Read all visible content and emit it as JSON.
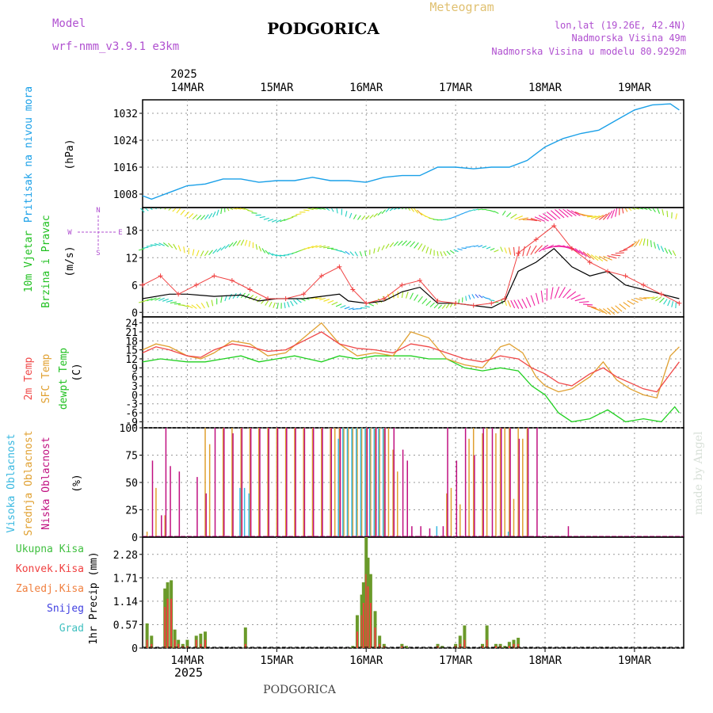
{
  "header": {
    "model_label": "Model",
    "model_value": "wrf-nmm_v3.9.1 e3km",
    "station": "PODGORICA",
    "product": "Meteogram",
    "coords": "lon,lat (19.26E, 42.4N)",
    "elevation": "Nadmorska Visina 49m",
    "model_elevation": "Nadmorska Visina u modelu 80.9292m",
    "year": "2025",
    "footer_station": "PODGORICA",
    "credit": "made by Angel"
  },
  "colors": {
    "pressure": "#1aa0e8",
    "wind_speed": "#000000",
    "wind_gust": "#f04040",
    "temp_2m": "#f04848",
    "temp_sfc": "#e0a030",
    "temp_dew": "#20d020",
    "cloud_high": "#38b8e0",
    "cloud_mid": "#e0a030",
    "cloud_low": "#c01080",
    "precip_total": "#40c040",
    "precip_conv": "#f04040",
    "precip_frz": "#f08040",
    "precip_snow": "#4040e0",
    "precip_grad": "#40c0c0",
    "accent_purple": "#b050d0",
    "accent_gold": "#e0c070"
  },
  "chart_data": [
    {
      "type": "line",
      "id": "pressure",
      "title": "Pritisak na nivou mora",
      "ylabel": "(hPa)",
      "ylim": [
        1004,
        1036
      ],
      "yticks": [
        1008,
        1016,
        1024,
        1032
      ],
      "x_days": [
        13.5,
        13.6,
        13.7,
        13.85,
        14.0,
        14.2,
        14.4,
        14.6,
        14.8,
        15.0,
        15.2,
        15.4,
        15.6,
        15.8,
        16.0,
        16.2,
        16.4,
        16.6,
        16.8,
        17.0,
        17.2,
        17.4,
        17.6,
        17.8,
        18.0,
        18.2,
        18.4,
        18.6,
        18.8,
        19.0,
        19.2,
        19.4,
        19.5
      ],
      "values": [
        1007.5,
        1006.5,
        1007.5,
        1009,
        1010.5,
        1011,
        1012.5,
        1012.5,
        1011.5,
        1012,
        1012,
        1013,
        1012,
        1012,
        1011.5,
        1013,
        1013.5,
        1013.5,
        1016,
        1016,
        1015.5,
        1016,
        1016,
        1018,
        1022,
        1024.5,
        1026,
        1027,
        1030,
        1033,
        1034.5,
        1034.8,
        1033
      ]
    },
    {
      "type": "line",
      "id": "wind",
      "title": "10m Vjetar",
      "subtitle": "Brzina i Pravac",
      "ylabel": "(m/s)",
      "ylim": [
        -1,
        23
      ],
      "yticks": [
        0,
        6,
        12,
        18
      ],
      "compass": [
        "N",
        "W",
        "E",
        "S"
      ],
      "series": [
        {
          "name": "speed",
          "x_days": [
            13.5,
            13.8,
            14.0,
            14.3,
            14.6,
            14.8,
            15.0,
            15.3,
            15.5,
            15.7,
            15.8,
            16.0,
            16.2,
            16.4,
            16.6,
            16.8,
            17.0,
            17.2,
            17.4,
            17.55,
            17.7,
            17.9,
            18.1,
            18.3,
            18.5,
            18.7,
            18.9,
            19.1,
            19.3,
            19.5
          ],
          "values": [
            3,
            4,
            4,
            3.5,
            3.8,
            2.5,
            3,
            3,
            3.5,
            4,
            2.5,
            2,
            2.5,
            4.5,
            5.5,
            2,
            2,
            1.5,
            1,
            2.5,
            9,
            11,
            14,
            10,
            8,
            9,
            6,
            5,
            4,
            3
          ]
        },
        {
          "name": "gust",
          "x_days": [
            13.5,
            13.7,
            13.9,
            14.1,
            14.3,
            14.5,
            14.7,
            14.9,
            15.1,
            15.3,
            15.5,
            15.7,
            15.85,
            16.0,
            16.2,
            16.4,
            16.6,
            16.8,
            17.0,
            17.2,
            17.4,
            17.55,
            17.7,
            17.9,
            18.1,
            18.3,
            18.5,
            18.7,
            18.9,
            19.1,
            19.3,
            19.5
          ],
          "values": [
            6,
            8,
            4,
            6,
            8,
            7,
            5,
            3,
            3,
            4,
            8,
            10,
            5,
            2,
            3,
            6,
            7,
            2.5,
            2,
            1.5,
            2,
            3,
            13,
            16,
            19,
            14,
            11,
            9,
            8,
            6,
            4,
            2
          ]
        }
      ]
    },
    {
      "type": "line",
      "id": "temperature",
      "title": "2m Temp",
      "title2": "SFC Temp",
      "title3": "dewpt Temp",
      "ylabel": "(C)",
      "ylim": [
        -11,
        26
      ],
      "yticks": [
        24,
        21,
        18,
        15,
        12,
        9,
        6,
        3,
        0,
        -3,
        -6,
        -9
      ],
      "series": [
        {
          "name": "2m",
          "x_days": [
            13.5,
            13.65,
            13.8,
            14.0,
            14.15,
            14.3,
            14.5,
            14.7,
            14.9,
            15.1,
            15.3,
            15.5,
            15.7,
            15.9,
            16.1,
            16.3,
            16.5,
            16.7,
            16.9,
            17.1,
            17.3,
            17.5,
            17.7,
            17.85,
            18.0,
            18.15,
            18.3,
            18.5,
            18.65,
            18.8,
            18.95,
            19.1,
            19.25,
            19.4,
            19.5
          ],
          "values": [
            14,
            16,
            15,
            13,
            12.5,
            15,
            17,
            16,
            14.5,
            15,
            18,
            21,
            17,
            15.5,
            15,
            14,
            17,
            16,
            14,
            12,
            11,
            13,
            12,
            9,
            7,
            4,
            3,
            7,
            9,
            6,
            4,
            2,
            1,
            7,
            11
          ]
        },
        {
          "name": "sfc",
          "x_days": [
            13.5,
            13.65,
            13.8,
            14.0,
            14.15,
            14.3,
            14.5,
            14.7,
            14.9,
            15.1,
            15.3,
            15.5,
            15.7,
            15.9,
            16.1,
            16.3,
            16.5,
            16.7,
            16.9,
            17.1,
            17.3,
            17.5,
            17.6,
            17.75,
            17.9,
            18.0,
            18.15,
            18.3,
            18.5,
            18.65,
            18.8,
            18.95,
            19.1,
            19.25,
            19.4,
            19.5
          ],
          "values": [
            15,
            17,
            16,
            13,
            12,
            14,
            18,
            17,
            13,
            14,
            19,
            24,
            17,
            13,
            14,
            13,
            21,
            19,
            12,
            10,
            9,
            16,
            17,
            14,
            6,
            3,
            1,
            2,
            6,
            11,
            5,
            2,
            0,
            -1,
            13,
            16
          ]
        },
        {
          "name": "dewpt",
          "x_days": [
            13.5,
            13.7,
            14.0,
            14.2,
            14.4,
            14.6,
            14.8,
            15.0,
            15.2,
            15.5,
            15.7,
            15.9,
            16.1,
            16.3,
            16.5,
            16.7,
            16.9,
            17.1,
            17.3,
            17.5,
            17.7,
            17.85,
            18.0,
            18.15,
            18.3,
            18.5,
            18.7,
            18.9,
            19.1,
            19.3,
            19.45,
            19.5
          ],
          "values": [
            11,
            12,
            11,
            11,
            12,
            13,
            11,
            12,
            13,
            11,
            13,
            12,
            13,
            13,
            13,
            12,
            12,
            9,
            8,
            9,
            8,
            3,
            0,
            -6,
            -9,
            -8,
            -5,
            -9,
            -8,
            -9,
            -4,
            -6
          ]
        }
      ]
    },
    {
      "type": "bar",
      "id": "clouds",
      "title": "Visoka Oblacnost",
      "title2": "Srednja Oblacnost",
      "title3": "Niska Oblacnost",
      "ylabel": "(%)",
      "ylim": [
        0,
        100
      ],
      "yticks": [
        0,
        25,
        50,
        75,
        100
      ],
      "series": [
        {
          "name": "high",
          "x_days": [
            14.6,
            14.65,
            14.7,
            15.7,
            15.75,
            15.8,
            15.85,
            15.9,
            15.95,
            16.0,
            16.05,
            16.1,
            16.15,
            16.2,
            16.8,
            17.6
          ],
          "values": [
            45,
            45,
            40,
            90,
            100,
            100,
            100,
            100,
            100,
            100,
            100,
            100,
            100,
            100,
            10,
            5
          ]
        },
        {
          "name": "mid",
          "x_days": [
            13.55,
            13.65,
            13.75,
            14.2,
            14.25,
            14.4,
            14.5,
            14.6,
            14.7,
            14.8,
            14.9,
            15.0,
            15.1,
            15.2,
            15.3,
            15.4,
            15.5,
            15.6,
            15.65,
            15.7,
            15.75,
            15.8,
            15.85,
            15.9,
            15.95,
            16.0,
            16.05,
            16.1,
            16.15,
            16.2,
            16.25,
            16.3,
            16.35,
            16.9,
            16.95,
            17.05,
            17.15,
            17.2,
            17.3,
            17.35,
            17.45,
            17.5,
            17.55,
            17.6,
            17.65,
            17.7,
            17.75,
            17.8
          ],
          "values": [
            5,
            45,
            20,
            100,
            85,
            100,
            100,
            100,
            100,
            100,
            100,
            100,
            100,
            100,
            100,
            100,
            100,
            100,
            100,
            100,
            100,
            100,
            100,
            100,
            100,
            100,
            100,
            100,
            100,
            100,
            100,
            80,
            60,
            40,
            45,
            30,
            90,
            100,
            95,
            100,
            95,
            100,
            100,
            100,
            35,
            100,
            90,
            100
          ]
        },
        {
          "name": "low",
          "x_days": [
            13.6,
            13.7,
            13.75,
            13.8,
            13.9,
            14.1,
            14.2,
            14.3,
            14.4,
            14.5,
            14.6,
            14.7,
            14.8,
            14.9,
            15.0,
            15.1,
            15.2,
            15.3,
            15.4,
            15.5,
            15.6,
            15.7,
            16.0,
            16.1,
            16.2,
            16.3,
            16.4,
            16.45,
            16.5,
            16.6,
            16.7,
            16.85,
            16.9,
            17.0,
            17.1,
            17.2,
            17.3,
            17.4,
            17.5,
            17.6,
            17.7,
            17.8,
            17.9,
            18.25
          ],
          "values": [
            70,
            20,
            100,
            65,
            60,
            55,
            40,
            100,
            100,
            95,
            100,
            100,
            100,
            100,
            100,
            100,
            100,
            100,
            100,
            100,
            100,
            100,
            100,
            100,
            100,
            100,
            80,
            70,
            10,
            10,
            8,
            10,
            100,
            70,
            100,
            75,
            100,
            100,
            100,
            100,
            90,
            100,
            100,
            10
          ]
        }
      ]
    },
    {
      "type": "bar",
      "id": "precip",
      "legend": [
        "Ukupna Kisa",
        "Konvek.Kisa",
        "Zaledj.Kisa",
        "Snijeg",
        "Grad"
      ],
      "ylabel": "1hr Precip (mm)",
      "ylim": [
        0,
        2.7
      ],
      "yticks": [
        0,
        0.57,
        1.14,
        1.71,
        2.28
      ],
      "x_days": [
        13.55,
        13.6,
        13.75,
        13.78,
        13.82,
        13.86,
        13.9,
        13.95,
        14.0,
        14.1,
        14.15,
        14.2,
        14.65,
        15.85,
        15.9,
        15.95,
        15.97,
        16.0,
        16.02,
        16.05,
        16.1,
        16.15,
        16.2,
        16.4,
        16.45,
        16.8,
        16.85,
        17.0,
        17.05,
        17.1,
        17.3,
        17.35,
        17.45,
        17.5,
        17.55,
        17.6,
        17.65,
        17.7
      ],
      "total": [
        0.6,
        0.3,
        1.45,
        1.6,
        1.65,
        0.45,
        0.2,
        0.1,
        0.2,
        0.3,
        0.35,
        0.4,
        0.5,
        0.05,
        0.8,
        1.3,
        1.6,
        2.7,
        2.2,
        1.8,
        0.9,
        0.3,
        0.1,
        0.1,
        0.05,
        0.1,
        0.05,
        0.1,
        0.3,
        0.55,
        0.1,
        0.55,
        0.1,
        0.1,
        0.05,
        0.15,
        0.2,
        0.25
      ],
      "conv": [
        0.2,
        0.1,
        1.0,
        1.2,
        1.2,
        0.2,
        0.1,
        0.05,
        0.05,
        0.2,
        0.1,
        0.2,
        0.1,
        0.0,
        0.4,
        0.8,
        1.1,
        1.8,
        1.5,
        1.1,
        0.5,
        0.1,
        0.05,
        0.05,
        0.0,
        0.05,
        0.0,
        0.05,
        0.1,
        0.2,
        0.05,
        0.2,
        0.05,
        0.05,
        0.0,
        0.05,
        0.1,
        0.1
      ]
    }
  ],
  "x_axis": {
    "labels": [
      "14MAR",
      "15MAR",
      "16MAR",
      "17MAR",
      "18MAR",
      "19MAR"
    ],
    "days": [
      14,
      15,
      16,
      17,
      18,
      19
    ],
    "range": [
      13.5,
      19.55
    ]
  }
}
